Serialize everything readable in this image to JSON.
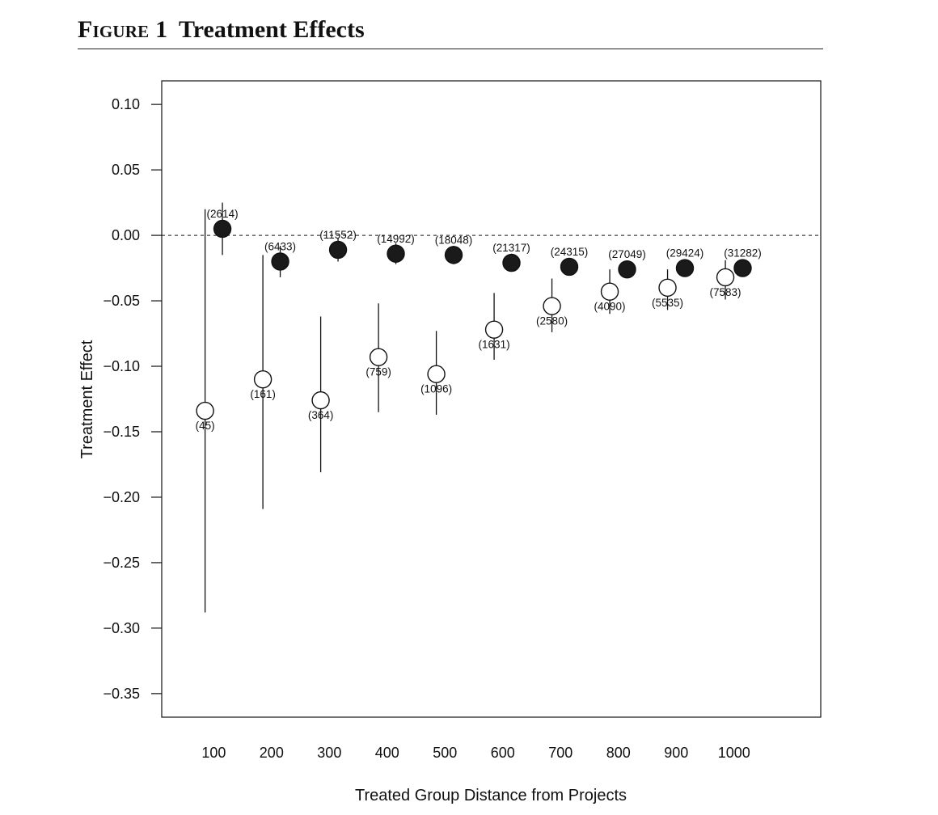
{
  "figure": {
    "number": "Figure 1",
    "title": "Treatment Effects"
  },
  "chart_data": {
    "type": "scatter",
    "title": "Treatment Effects",
    "xlabel": "Treated Group Distance from Projects",
    "ylabel": "Treatment Effect",
    "xlim": [
      10,
      1150
    ],
    "ylim": [
      -0.368,
      0.118
    ],
    "x_ticks": [
      100,
      200,
      300,
      400,
      500,
      600,
      700,
      800,
      900,
      1000
    ],
    "x_tick_labels": [
      "100",
      "200",
      "300",
      "400",
      "500",
      "600",
      "700",
      "800",
      "900",
      "1000"
    ],
    "y_ticks": [
      0.1,
      0.05,
      0.0,
      -0.05,
      -0.1,
      -0.15,
      -0.2,
      -0.25,
      -0.3,
      -0.35
    ],
    "y_tick_labels": [
      "0.10",
      "0.05",
      "0.00",
      "−0.05",
      "−0.10",
      "−0.15",
      "−0.20",
      "−0.25",
      "−0.30",
      "−0.35"
    ],
    "reference_line": {
      "y": 0,
      "style": "dashed"
    },
    "grid": false,
    "series": [
      {
        "marker": "open-circle",
        "points": [
          {
            "x": 85,
            "y": -0.134,
            "lo": -0.288,
            "hi": 0.02,
            "label": "(45)"
          },
          {
            "x": 185,
            "y": -0.11,
            "lo": -0.209,
            "hi": -0.015,
            "label": "(161)"
          },
          {
            "x": 285,
            "y": -0.126,
            "lo": -0.181,
            "hi": -0.062,
            "label": "(364)"
          },
          {
            "x": 385,
            "y": -0.093,
            "lo": -0.135,
            "hi": -0.052,
            "label": "(759)"
          },
          {
            "x": 485,
            "y": -0.106,
            "lo": -0.137,
            "hi": -0.073,
            "label": "(1096)"
          },
          {
            "x": 585,
            "y": -0.072,
            "lo": -0.095,
            "hi": -0.044,
            "label": "(1631)"
          },
          {
            "x": 685,
            "y": -0.054,
            "lo": -0.074,
            "hi": -0.033,
            "label": "(2580)"
          },
          {
            "x": 785,
            "y": -0.043,
            "lo": -0.06,
            "hi": -0.026,
            "label": "(4090)"
          },
          {
            "x": 885,
            "y": -0.04,
            "lo": -0.057,
            "hi": -0.026,
            "label": "(5535)"
          },
          {
            "x": 985,
            "y": -0.032,
            "lo": -0.049,
            "hi": -0.019,
            "label": "(7583)"
          }
        ]
      },
      {
        "marker": "filled-circle",
        "points": [
          {
            "x": 115,
            "y": 0.005,
            "lo": -0.015,
            "hi": 0.025,
            "label": "(2614)"
          },
          {
            "x": 215,
            "y": -0.02,
            "lo": -0.032,
            "hi": -0.008,
            "label": "(6433)"
          },
          {
            "x": 315,
            "y": -0.011,
            "lo": -0.02,
            "hi": -0.002,
            "label": "(11552)"
          },
          {
            "x": 415,
            "y": -0.014,
            "lo": -0.022,
            "hi": -0.006,
            "label": "(14992)"
          },
          {
            "x": 515,
            "y": -0.015,
            "lo": -0.022,
            "hi": -0.008,
            "label": "(18048)"
          },
          {
            "x": 615,
            "y": -0.021,
            "lo": -0.027,
            "hi": -0.014,
            "label": "(21317)"
          },
          {
            "x": 715,
            "y": -0.024,
            "lo": -0.03,
            "hi": -0.018,
            "label": "(24315)"
          },
          {
            "x": 815,
            "y": -0.026,
            "lo": -0.032,
            "hi": -0.02,
            "label": "(27049)"
          },
          {
            "x": 915,
            "y": -0.025,
            "lo": -0.031,
            "hi": -0.019,
            "label": "(29424)"
          },
          {
            "x": 1015,
            "y": -0.025,
            "lo": -0.031,
            "hi": -0.019,
            "label": "(31282)"
          }
        ]
      }
    ]
  }
}
